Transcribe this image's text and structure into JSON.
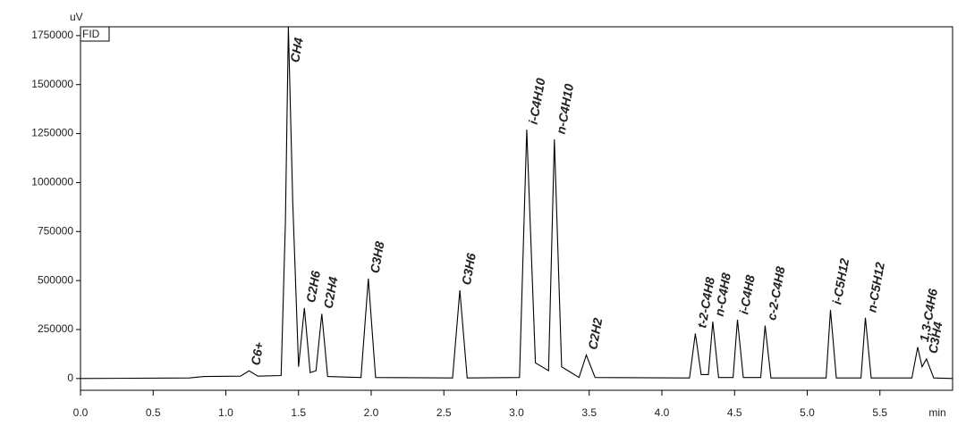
{
  "chart_data": {
    "type": "line",
    "y_label": "uV",
    "x_label": "min",
    "legend": "FID",
    "color": "#000000",
    "xlim": [
      0,
      6.0
    ],
    "ylim": [
      -60000,
      1795000
    ],
    "xticks": [
      {
        "value": 0,
        "label": "0.0"
      },
      {
        "value": 0.5,
        "label": "0.5"
      },
      {
        "value": 1,
        "label": "1.0"
      },
      {
        "value": 1.5,
        "label": "1.5"
      },
      {
        "value": 2,
        "label": "2.0"
      },
      {
        "value": 2.5,
        "label": "2.5"
      },
      {
        "value": 3,
        "label": "3.0"
      },
      {
        "value": 3.5,
        "label": "3.5"
      },
      {
        "value": 4,
        "label": "4.0"
      },
      {
        "value": 4.5,
        "label": "4.5"
      },
      {
        "value": 5,
        "label": "5.0"
      },
      {
        "value": 5.5,
        "label": "5.5"
      }
    ],
    "yticks": [
      0,
      250000,
      500000,
      750000,
      1000000,
      1250000,
      1500000,
      1750000
    ],
    "x": [
      0,
      0.75,
      0.85,
      1.1,
      1.16,
      1.22,
      1.38,
      1.41,
      1.43,
      1.46,
      1.5,
      1.54,
      1.58,
      1.62,
      1.66,
      1.7,
      1.93,
      1.98,
      2.03,
      2.56,
      2.61,
      2.66,
      3.02,
      3.07,
      3.13,
      3.22,
      3.26,
      3.31,
      3.43,
      3.48,
      3.54,
      4.19,
      4.23,
      4.27,
      4.32,
      4.35,
      4.39,
      4.49,
      4.52,
      4.56,
      4.68,
      4.71,
      4.75,
      5.13,
      5.16,
      5.2,
      5.37,
      5.4,
      5.44,
      5.72,
      5.76,
      5.79,
      5.82,
      5.87,
      6.0
    ],
    "values": [
      0,
      3000,
      10000,
      12000,
      40000,
      12000,
      15000,
      800000,
      1795000,
      900000,
      60000,
      360000,
      30000,
      40000,
      330000,
      10000,
      5000,
      510000,
      5000,
      3000,
      450000,
      3000,
      5000,
      1270000,
      80000,
      40000,
      1220000,
      60000,
      5000,
      120000,
      5000,
      3000,
      230000,
      20000,
      20000,
      290000,
      5000,
      5000,
      300000,
      5000,
      5000,
      270000,
      3000,
      3000,
      350000,
      3000,
      3000,
      310000,
      3000,
      3000,
      160000,
      60000,
      100000,
      3000,
      0
    ],
    "peaks": [
      {
        "name": "C6+",
        "time": 1.16,
        "height": 40000
      },
      {
        "name": "CH4",
        "time": 1.43,
        "height": 1795000
      },
      {
        "name": "C2H6",
        "time": 1.54,
        "height": 360000
      },
      {
        "name": "C2H4",
        "time": 1.66,
        "height": 330000
      },
      {
        "name": "C3H8",
        "time": 1.98,
        "height": 510000
      },
      {
        "name": "C3H6",
        "time": 2.61,
        "height": 450000
      },
      {
        "name": "i-C4H10",
        "time": 3.07,
        "height": 1270000
      },
      {
        "name": "n-C4H10",
        "time": 3.26,
        "height": 1220000
      },
      {
        "name": "C2H2",
        "time": 3.48,
        "height": 120000
      },
      {
        "name": "t-2-C4H8",
        "time": 4.23,
        "height": 230000
      },
      {
        "name": "n-C4H8",
        "time": 4.35,
        "height": 290000
      },
      {
        "name": "i-C4H8",
        "time": 4.52,
        "height": 300000
      },
      {
        "name": "c-2-C4H8",
        "time": 4.71,
        "height": 270000
      },
      {
        "name": "i-C5H12",
        "time": 5.16,
        "height": 350000
      },
      {
        "name": "n-C5H12",
        "time": 5.4,
        "height": 310000
      },
      {
        "name": "1,3-C4H6",
        "time": 5.76,
        "height": 160000
      },
      {
        "name": "C3H4",
        "time": 5.82,
        "height": 100000
      }
    ]
  }
}
